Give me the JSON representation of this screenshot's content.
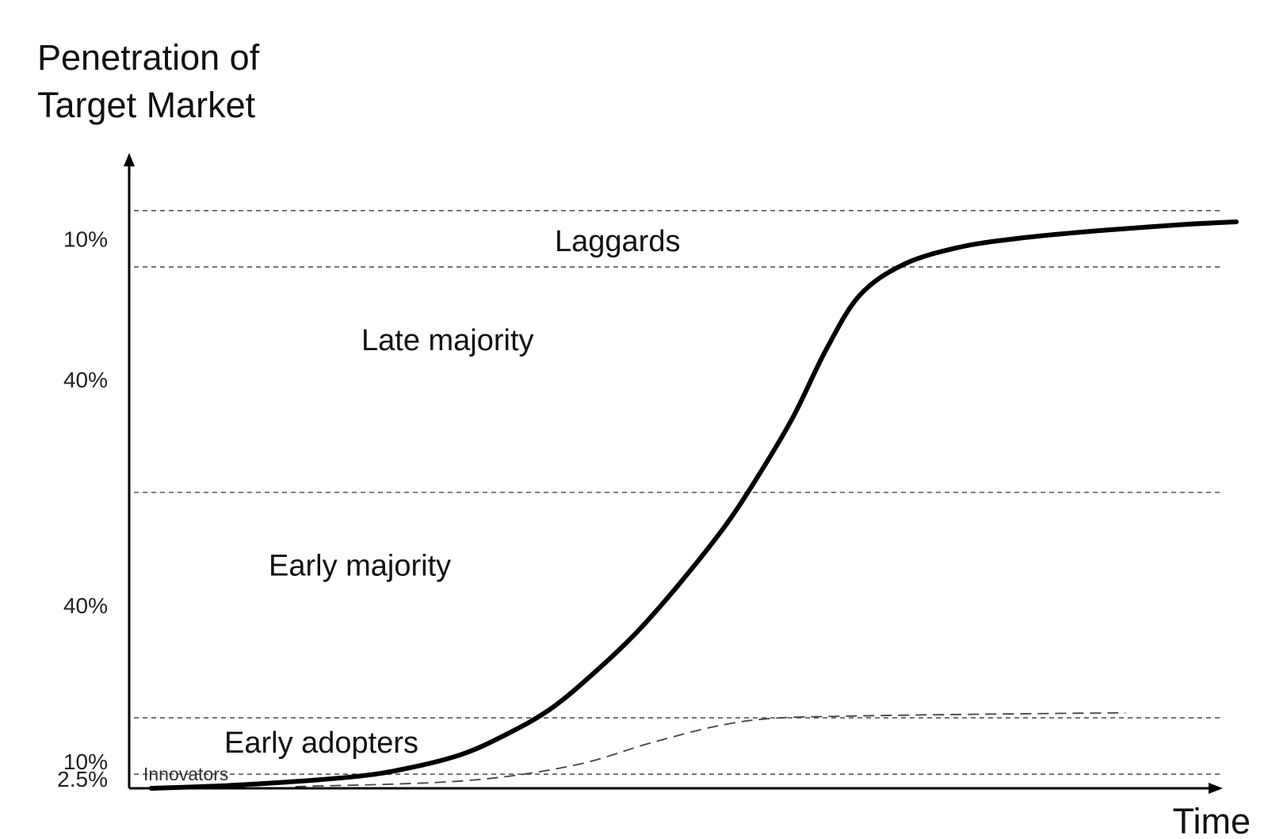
{
  "chart_data": {
    "type": "line",
    "ylabel_line1": "Penetration of",
    "ylabel_line2": "Target Market",
    "xlabel": "Time",
    "segments": [
      {
        "label": "Innovators",
        "share": "2.5%"
      },
      {
        "label": "Early adopters",
        "share": "10%"
      },
      {
        "label": "Early majority",
        "share": "40%"
      },
      {
        "label": "Late majority",
        "share": "40%"
      },
      {
        "label": "Laggards",
        "share": "10%"
      }
    ],
    "cumulative_boundaries": [
      2.5,
      12.5,
      52.5,
      92.5,
      102.5
    ],
    "ylim": [
      0,
      105
    ],
    "grid": false,
    "series": [
      {
        "style": "solid",
        "x": [
          2,
          10,
          20,
          25,
          30,
          34,
          38,
          42,
          46,
          50,
          54,
          57,
          60,
          63,
          66,
          70,
          75,
          80,
          85,
          90,
          95,
          100
        ],
        "y": [
          0,
          0.6,
          2,
          3.5,
          6,
          9.5,
          14,
          20.5,
          28,
          37,
          47,
          56,
          66,
          78,
          87.5,
          93,
          96,
          97.5,
          98.5,
          99.3,
          100,
          100.5
        ]
      },
      {
        "style": "dashed",
        "x": [
          15,
          30,
          40,
          47,
          53,
          58,
          65,
          75,
          90
        ],
        "y": [
          0.3,
          1.3,
          4,
          8,
          11,
          12.4,
          12.8,
          13.1,
          13.4
        ]
      }
    ]
  }
}
